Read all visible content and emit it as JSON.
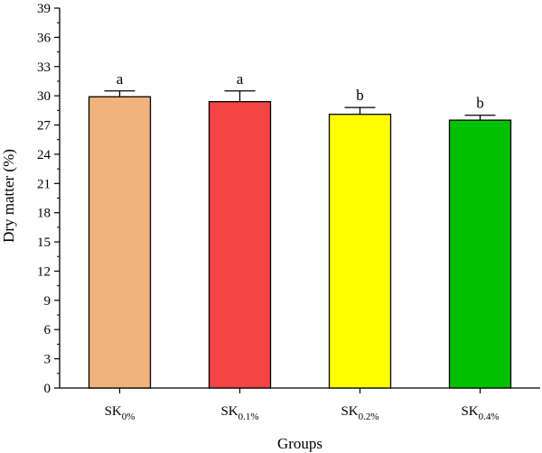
{
  "chart_data": {
    "type": "bar",
    "title": "",
    "xlabel": "Groups",
    "ylabel": "Dry matter (%)",
    "ylim": [
      0,
      39
    ],
    "yticks": [
      0,
      3,
      6,
      9,
      12,
      15,
      18,
      21,
      24,
      27,
      30,
      33,
      36,
      39
    ],
    "categories": [
      {
        "base": "SK",
        "sub": "0%"
      },
      {
        "base": "SK",
        "sub": "0.1%"
      },
      {
        "base": "SK",
        "sub": "0.2%"
      },
      {
        "base": "SK",
        "sub": "0.4%"
      }
    ],
    "values": [
      29.9,
      29.4,
      28.1,
      27.5
    ],
    "errors": [
      0.6,
      1.1,
      0.7,
      0.5
    ],
    "significance": [
      "a",
      "a",
      "b",
      "b"
    ],
    "colors": [
      "#f0b37e",
      "#f44444",
      "#ffff00",
      "#00c000"
    ],
    "grid": false,
    "legend": "none"
  }
}
